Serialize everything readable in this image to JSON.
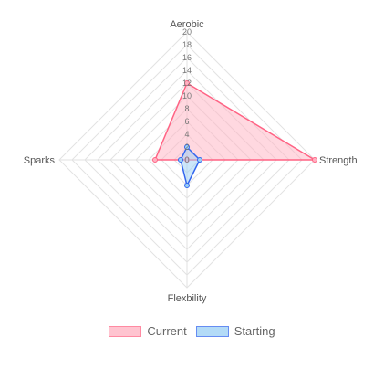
{
  "chart_data": {
    "type": "radar",
    "axes": [
      "Aerobic",
      "Strength",
      "Flexbility",
      "Sparks"
    ],
    "r_ticks": [
      0,
      2,
      4,
      6,
      8,
      10,
      12,
      14,
      16,
      18,
      20
    ],
    "r_range": [
      0,
      20
    ],
    "grid": true,
    "legend_position": "bottom",
    "series": [
      {
        "name": "Current",
        "values": [
          12,
          20,
          0,
          5
        ],
        "fill": "#ffb1c1",
        "stroke": "#ff6384"
      },
      {
        "name": "Starting",
        "values": [
          2,
          2,
          4,
          1
        ],
        "fill": "#9ad0f5",
        "stroke": "#3366ee"
      }
    ]
  }
}
